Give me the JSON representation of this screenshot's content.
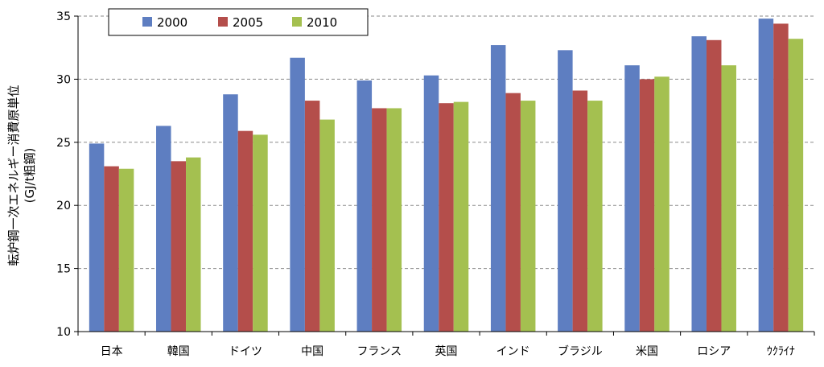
{
  "chart_data": {
    "type": "bar",
    "title": "",
    "xlabel": "",
    "ylabel": "転炉鋼一次エネルギー消費原単位",
    "ylabel_unit": "(GJ/t粗鋼)",
    "ylim": [
      10,
      35
    ],
    "yticks": [
      10,
      15,
      20,
      25,
      30,
      35
    ],
    "grid": "dashed-horizontal",
    "legend_position": "top-left",
    "categories": [
      "日本",
      "韓国",
      "ドイツ",
      "中国",
      "フランス",
      "英国",
      "インド",
      "ブラジル",
      "米国",
      "ロシア",
      "ｳｸﾗｲﾅ"
    ],
    "series": [
      {
        "name": "2000",
        "color": "#5e7ec1",
        "values": [
          24.9,
          26.3,
          28.8,
          31.7,
          29.9,
          30.3,
          32.7,
          32.3,
          31.1,
          33.4,
          34.8
        ]
      },
      {
        "name": "2005",
        "color": "#b44e4b",
        "values": [
          23.1,
          23.5,
          25.9,
          28.3,
          27.7,
          28.1,
          28.9,
          29.1,
          30.0,
          33.1,
          34.4
        ]
      },
      {
        "name": "2010",
        "color": "#a4c050",
        "values": [
          22.9,
          23.8,
          25.6,
          26.8,
          27.7,
          28.2,
          28.3,
          28.3,
          30.2,
          31.1,
          33.2
        ]
      }
    ]
  }
}
